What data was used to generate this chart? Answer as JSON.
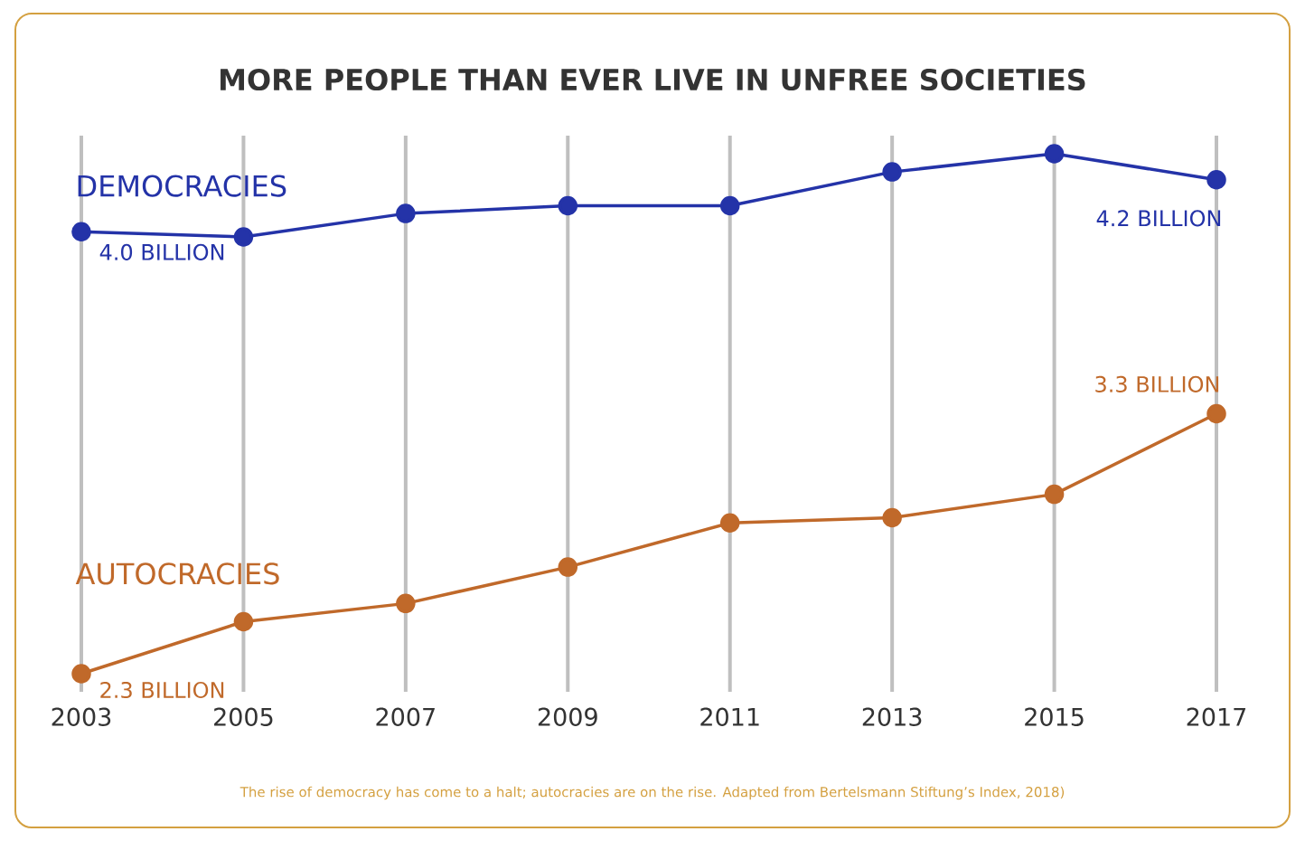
{
  "chart_data": {
    "type": "line",
    "title": "MORE PEOPLE THAN EVER LIVE IN UNFREE SOCIETIES",
    "categories": [
      "2003",
      "2005",
      "2007",
      "2009",
      "2011",
      "2013",
      "2015",
      "2017"
    ],
    "series": [
      {
        "name": "DEMOCRACIES",
        "color": "#2433a8",
        "values": [
          4.0,
          3.98,
          4.07,
          4.1,
          4.1,
          4.23,
          4.3,
          4.2
        ],
        "value_labels": [
          "4.0 BILLION",
          null,
          null,
          null,
          null,
          null,
          null,
          "4.2 BILLION"
        ]
      },
      {
        "name": "AUTOCRACIES",
        "color": "#c0692a",
        "values": [
          2.3,
          2.5,
          2.57,
          2.71,
          2.88,
          2.9,
          2.99,
          3.3
        ],
        "value_labels": [
          "2.3 BILLION",
          null,
          null,
          null,
          null,
          null,
          null,
          "3.3 BILLION"
        ]
      }
    ],
    "grid": "x",
    "marker": "circle",
    "line_style": "solid",
    "tick_labels": "x",
    "annotations": [
      "The rise of democracy has come to a halt; autocracies are on the rise. Adapted from Bertelsmann Stiftung’s Index, 2018)"
    ]
  }
}
